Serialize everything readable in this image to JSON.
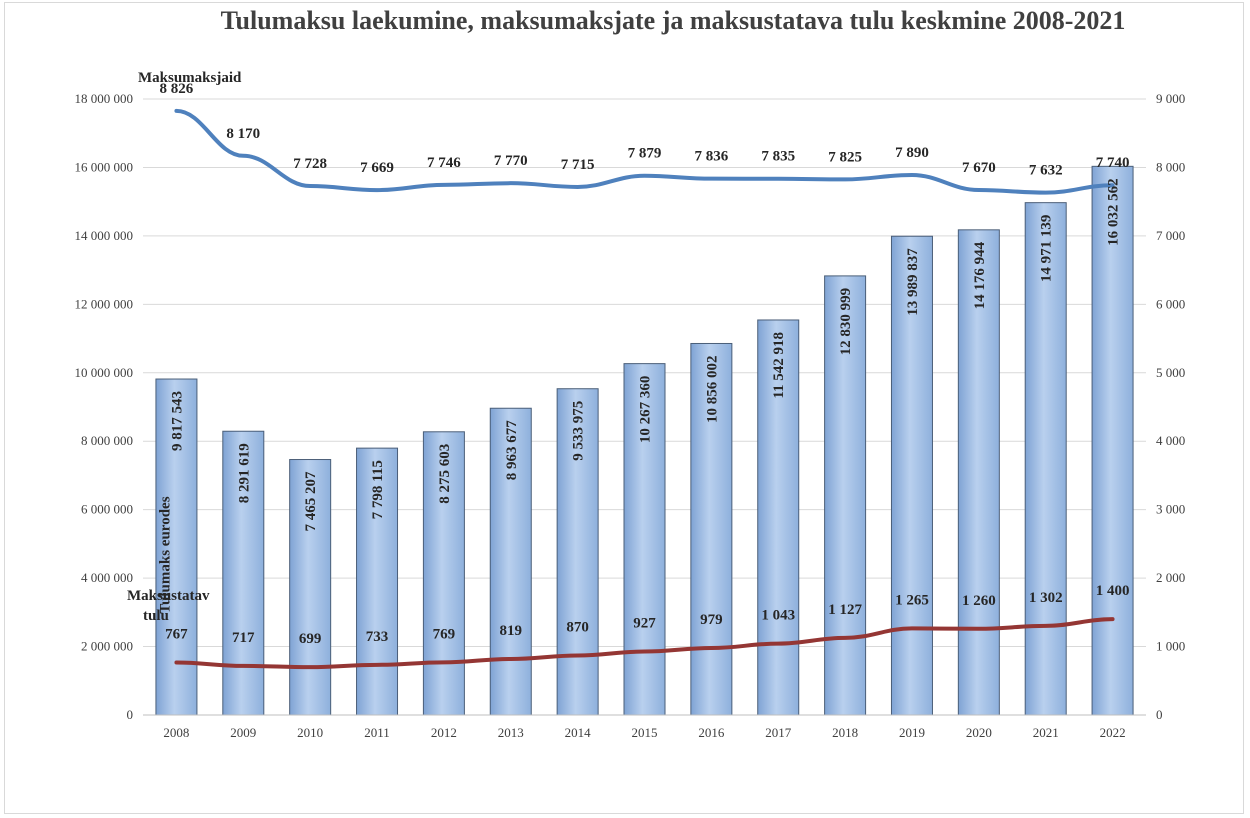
{
  "chart_data": {
    "type": "bar",
    "title": "Tulumaksu laekumine, maksumaksjate ja maksustatava tulu keskmine 2008-2021",
    "categories": [
      "2008",
      "2009",
      "2010",
      "2011",
      "2012",
      "2013",
      "2014",
      "2015",
      "2016",
      "2017",
      "2018",
      "2019",
      "2020",
      "2021",
      "2022"
    ],
    "left_axis": {
      "ylim": [
        0,
        18000000
      ],
      "ticks": [
        0,
        2000000,
        4000000,
        6000000,
        8000000,
        10000000,
        12000000,
        14000000,
        16000000,
        18000000
      ],
      "tick_labels": [
        "0",
        "2 000 000",
        "4 000 000",
        "6 000 000",
        "8 000 000",
        "10 000 000",
        "12 000 000",
        "14 000 000",
        "16 000 000",
        "18 000 000"
      ]
    },
    "right_axis": {
      "ylim": [
        0,
        9000
      ],
      "ticks": [
        0,
        1000,
        2000,
        3000,
        4000,
        5000,
        6000,
        7000,
        8000,
        9000
      ],
      "tick_labels": [
        "0",
        "1 000",
        "2 000",
        "3 000",
        "4 000",
        "5 000",
        "6 000",
        "7 000",
        "8 000",
        "9 000"
      ]
    },
    "grid": true,
    "series": [
      {
        "name": "Tulumaks eurodes",
        "kind": "bar",
        "axis": "left",
        "color": "#9dbbe0",
        "values": [
          9817543,
          8291619,
          7465207,
          7798115,
          8275603,
          8963677,
          9533975,
          10267360,
          10856002,
          11542918,
          12830999,
          13989837,
          14176944,
          14971139,
          16032562
        ],
        "labels": [
          "9 817 543",
          "8 291 619",
          "7 465 207",
          "7 798 115",
          "8 275 603",
          "8 963 677",
          "9 533 975",
          "10 267 360",
          "10 856 002",
          "11 542 918",
          "12 830 999",
          "13 989 837",
          "14 176 944",
          "14 971 139",
          "16 032 562"
        ]
      },
      {
        "name": "Maksumaksjaid",
        "kind": "line",
        "axis": "right",
        "color": "#4f81bd",
        "values": [
          8826,
          8170,
          7728,
          7669,
          7746,
          7770,
          7715,
          7879,
          7836,
          7835,
          7825,
          7890,
          7670,
          7632,
          7740
        ],
        "labels": [
          "8 826",
          "8 170",
          "7 728",
          "7 669",
          "7 746",
          "7 770",
          "7 715",
          "7 879",
          "7 836",
          "7 835",
          "7 825",
          "7 890",
          "7 670",
          "7 632",
          "7 740"
        ]
      },
      {
        "name": "Maksustatav tulu",
        "kind": "line",
        "axis": "right",
        "color": "#943634",
        "values": [
          767,
          717,
          699,
          733,
          769,
          819,
          870,
          927,
          979,
          1043,
          1127,
          1265,
          1260,
          1302,
          1400
        ],
        "labels": [
          "767",
          "717",
          "699",
          "733",
          "769",
          "819",
          "870",
          "927",
          "979",
          "1 043",
          "1 127",
          "1 265",
          "1 260",
          "1 302",
          "1 400"
        ]
      }
    ],
    "series_labels": {
      "bar": "Tulumaks eurodes",
      "taxpayers_line1": "Maksumaksjaid",
      "income_line1": "Maksustatav",
      "income_line2": "tulu"
    }
  }
}
